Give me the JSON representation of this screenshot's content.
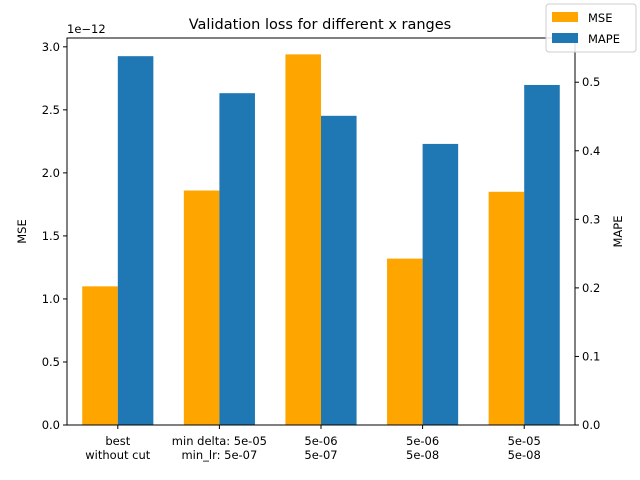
{
  "chart_data": {
    "type": "bar",
    "title": "Validation loss for different x ranges",
    "categories": [
      [
        "best",
        "without cut"
      ],
      [
        "min delta: 5e-05",
        "min_lr: 5e-07"
      ],
      [
        "5e-06",
        "5e-07"
      ],
      [
        "5e-06",
        "5e-08"
      ],
      [
        "5e-05",
        "5e-08"
      ]
    ],
    "series": [
      {
        "name": "MSE",
        "axis": "left",
        "color": "#ffa500",
        "values": [
          1.1e-12,
          1.86e-12,
          2.94e-12,
          1.32e-12,
          1.85e-12
        ]
      },
      {
        "name": "MAPE",
        "axis": "right",
        "color": "#1f77b4",
        "values": [
          0.538,
          0.484,
          0.451,
          0.41,
          0.496
        ]
      }
    ],
    "left_axis": {
      "label": "MSE",
      "offset_text": "1e−12",
      "scale": 1e-12,
      "ylim": [
        0,
        3.07
      ],
      "ticks": [
        0,
        0.5,
        1.0,
        1.5,
        2.0,
        2.5,
        3.0
      ],
      "tick_labels": [
        "0.0",
        "0.5",
        "1.0",
        "1.5",
        "2.0",
        "2.5",
        "3.0"
      ]
    },
    "right_axis": {
      "label": "MAPE",
      "ylim": [
        0,
        0.5645
      ],
      "ticks": [
        0,
        0.1,
        0.2,
        0.3,
        0.4,
        0.5
      ],
      "tick_labels": [
        "0.0",
        "0.1",
        "0.2",
        "0.3",
        "0.4",
        "0.5"
      ]
    },
    "legend_position": "top-right",
    "grid": false
  }
}
